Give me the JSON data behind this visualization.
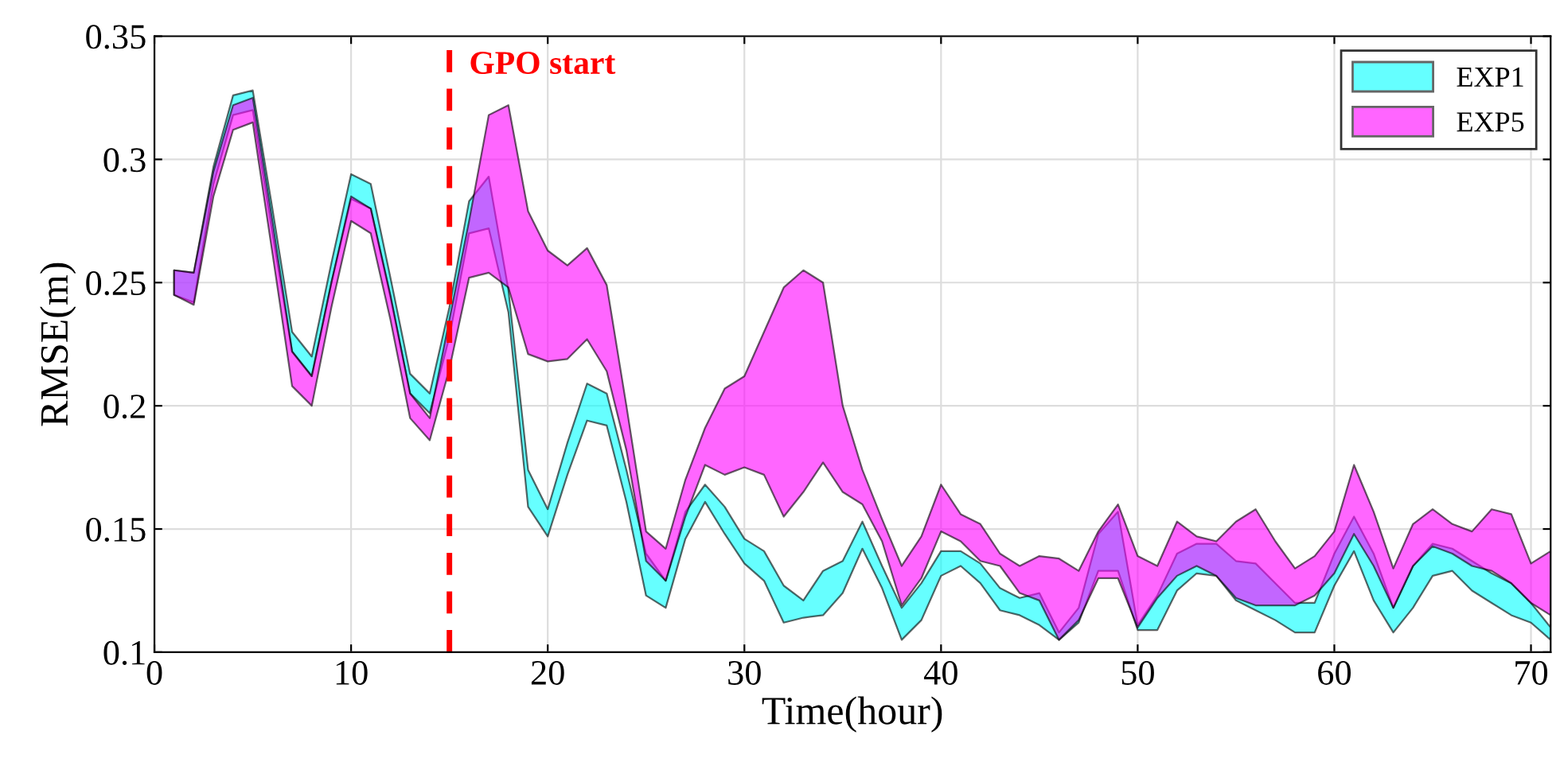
{
  "chart_data": {
    "type": "area",
    "xlabel": "Time(hour)",
    "ylabel": "RMSE(m)",
    "x": [
      1,
      2,
      3,
      4,
      5,
      6,
      7,
      8,
      9,
      10,
      11,
      12,
      13,
      14,
      15,
      16,
      17,
      18,
      19,
      20,
      21,
      22,
      23,
      24,
      25,
      26,
      27,
      28,
      29,
      30,
      31,
      32,
      33,
      34,
      35,
      36,
      37,
      38,
      39,
      40,
      41,
      42,
      43,
      44,
      45,
      46,
      47,
      48,
      49,
      50,
      51,
      52,
      53,
      54,
      55,
      56,
      57,
      58,
      59,
      60,
      61,
      62,
      63,
      64,
      65,
      66,
      67,
      68,
      69,
      70,
      71
    ],
    "xlim": [
      0,
      71
    ],
    "xticks": [
      0,
      10,
      20,
      30,
      40,
      50,
      60,
      70
    ],
    "ylim": [
      0.1,
      0.35
    ],
    "yticks": [
      0.1,
      0.15,
      0.2,
      0.25,
      0.3,
      0.35
    ],
    "grid": true,
    "legend": "top right",
    "series": [
      {
        "name": "EXP1",
        "color": "#00ffff",
        "values": [
          null,
          null,
          null,
          null,
          null,
          null,
          null,
          null,
          null,
          null,
          null,
          null,
          null,
          null,
          null,
          null,
          null,
          null,
          null,
          null,
          null,
          null,
          null,
          null,
          null,
          null,
          null,
          null,
          null,
          null,
          null,
          null,
          null,
          null,
          null,
          null,
          null,
          null,
          null,
          null,
          null,
          null,
          null,
          null,
          null,
          null,
          null,
          null,
          null,
          null,
          null,
          null,
          null,
          null,
          null,
          null,
          null,
          null,
          null,
          null,
          null,
          null,
          null,
          null,
          null,
          null,
          null,
          null,
          null,
          null,
          null
        ],
        "upper": [
          0.255,
          0.254,
          0.297,
          0.326,
          0.328,
          0.28,
          0.23,
          0.22,
          0.258,
          0.294,
          0.29,
          0.252,
          0.213,
          0.205,
          0.24,
          0.283,
          0.293,
          0.247,
          0.174,
          0.158,
          0.185,
          0.209,
          0.205,
          0.174,
          0.14,
          0.129,
          0.157,
          0.168,
          0.159,
          0.146,
          0.141,
          0.127,
          0.121,
          0.133,
          0.137,
          0.153,
          0.135,
          0.118,
          0.128,
          0.141,
          0.141,
          0.136,
          0.126,
          0.122,
          0.124,
          0.108,
          0.118,
          0.148,
          0.157,
          0.111,
          0.123,
          0.14,
          0.144,
          0.144,
          0.137,
          0.136,
          0.128,
          0.12,
          0.12,
          0.14,
          0.155,
          0.14,
          0.118,
          0.135,
          0.144,
          0.142,
          0.137,
          0.132,
          0.128,
          0.12,
          0.11
        ],
        "lower": [
          0.245,
          0.242,
          0.29,
          0.318,
          0.32,
          0.27,
          0.222,
          0.212,
          0.25,
          0.284,
          0.28,
          0.244,
          0.205,
          0.197,
          0.228,
          0.27,
          0.272,
          0.238,
          0.159,
          0.147,
          0.172,
          0.194,
          0.192,
          0.161,
          0.123,
          0.118,
          0.146,
          0.161,
          0.148,
          0.136,
          0.129,
          0.112,
          0.114,
          0.115,
          0.124,
          0.142,
          0.126,
          0.105,
          0.113,
          0.131,
          0.135,
          0.128,
          0.117,
          0.115,
          0.111,
          0.105,
          0.112,
          0.133,
          0.133,
          0.109,
          0.109,
          0.125,
          0.132,
          0.131,
          0.121,
          0.117,
          0.113,
          0.108,
          0.108,
          0.127,
          0.141,
          0.121,
          0.108,
          0.118,
          0.131,
          0.133,
          0.125,
          0.12,
          0.115,
          0.112,
          0.105
        ]
      },
      {
        "name": "EXP5",
        "color": "#ff00ff",
        "values": [
          null,
          null,
          null,
          null,
          null,
          null,
          null,
          null,
          null,
          null,
          null,
          null,
          null,
          null,
          null,
          null,
          null,
          null,
          null,
          null,
          null,
          null,
          null,
          null,
          null,
          null,
          null,
          null,
          null,
          null,
          null,
          null,
          null,
          null,
          null,
          null,
          null,
          null,
          null,
          null,
          null,
          null,
          null,
          null,
          null,
          null,
          null,
          null,
          null,
          null,
          null,
          null,
          null,
          null,
          null,
          null,
          null,
          null,
          null,
          null,
          null,
          null,
          null,
          null,
          null,
          null,
          null,
          null,
          null,
          null,
          null
        ],
        "upper": [
          0.255,
          0.254,
          0.295,
          0.322,
          0.325,
          0.275,
          0.222,
          0.212,
          0.25,
          0.285,
          0.28,
          0.245,
          0.205,
          0.195,
          0.235,
          0.275,
          0.318,
          0.322,
          0.279,
          0.263,
          0.257,
          0.264,
          0.249,
          0.2,
          0.149,
          0.142,
          0.17,
          0.191,
          0.207,
          0.212,
          0.23,
          0.248,
          0.255,
          0.25,
          0.2,
          0.174,
          0.154,
          0.135,
          0.147,
          0.168,
          0.156,
          0.152,
          0.14,
          0.135,
          0.139,
          0.138,
          0.133,
          0.149,
          0.16,
          0.139,
          0.135,
          0.153,
          0.147,
          0.145,
          0.153,
          0.158,
          0.145,
          0.134,
          0.139,
          0.149,
          0.176,
          0.157,
          0.134,
          0.152,
          0.158,
          0.152,
          0.149,
          0.158,
          0.156,
          0.136,
          0.141
        ],
        "lower": [
          0.245,
          0.241,
          0.285,
          0.312,
          0.315,
          0.262,
          0.208,
          0.2,
          0.24,
          0.275,
          0.27,
          0.235,
          0.195,
          0.186,
          0.215,
          0.252,
          0.254,
          0.248,
          0.221,
          0.218,
          0.219,
          0.227,
          0.214,
          0.182,
          0.137,
          0.129,
          0.155,
          0.176,
          0.172,
          0.175,
          0.172,
          0.155,
          0.165,
          0.177,
          0.165,
          0.16,
          0.145,
          0.119,
          0.13,
          0.149,
          0.145,
          0.137,
          0.135,
          0.124,
          0.121,
          0.105,
          0.113,
          0.13,
          0.13,
          0.11,
          0.122,
          0.131,
          0.135,
          0.131,
          0.122,
          0.119,
          0.119,
          0.119,
          0.123,
          0.132,
          0.148,
          0.135,
          0.118,
          0.135,
          0.143,
          0.14,
          0.135,
          0.133,
          0.128,
          0.12,
          0.115
        ]
      }
    ],
    "ref_lines": [
      {
        "axis": "x",
        "value": 15,
        "label": "GPO start",
        "color": "#ff0000",
        "line_style": "dashed"
      }
    ]
  }
}
